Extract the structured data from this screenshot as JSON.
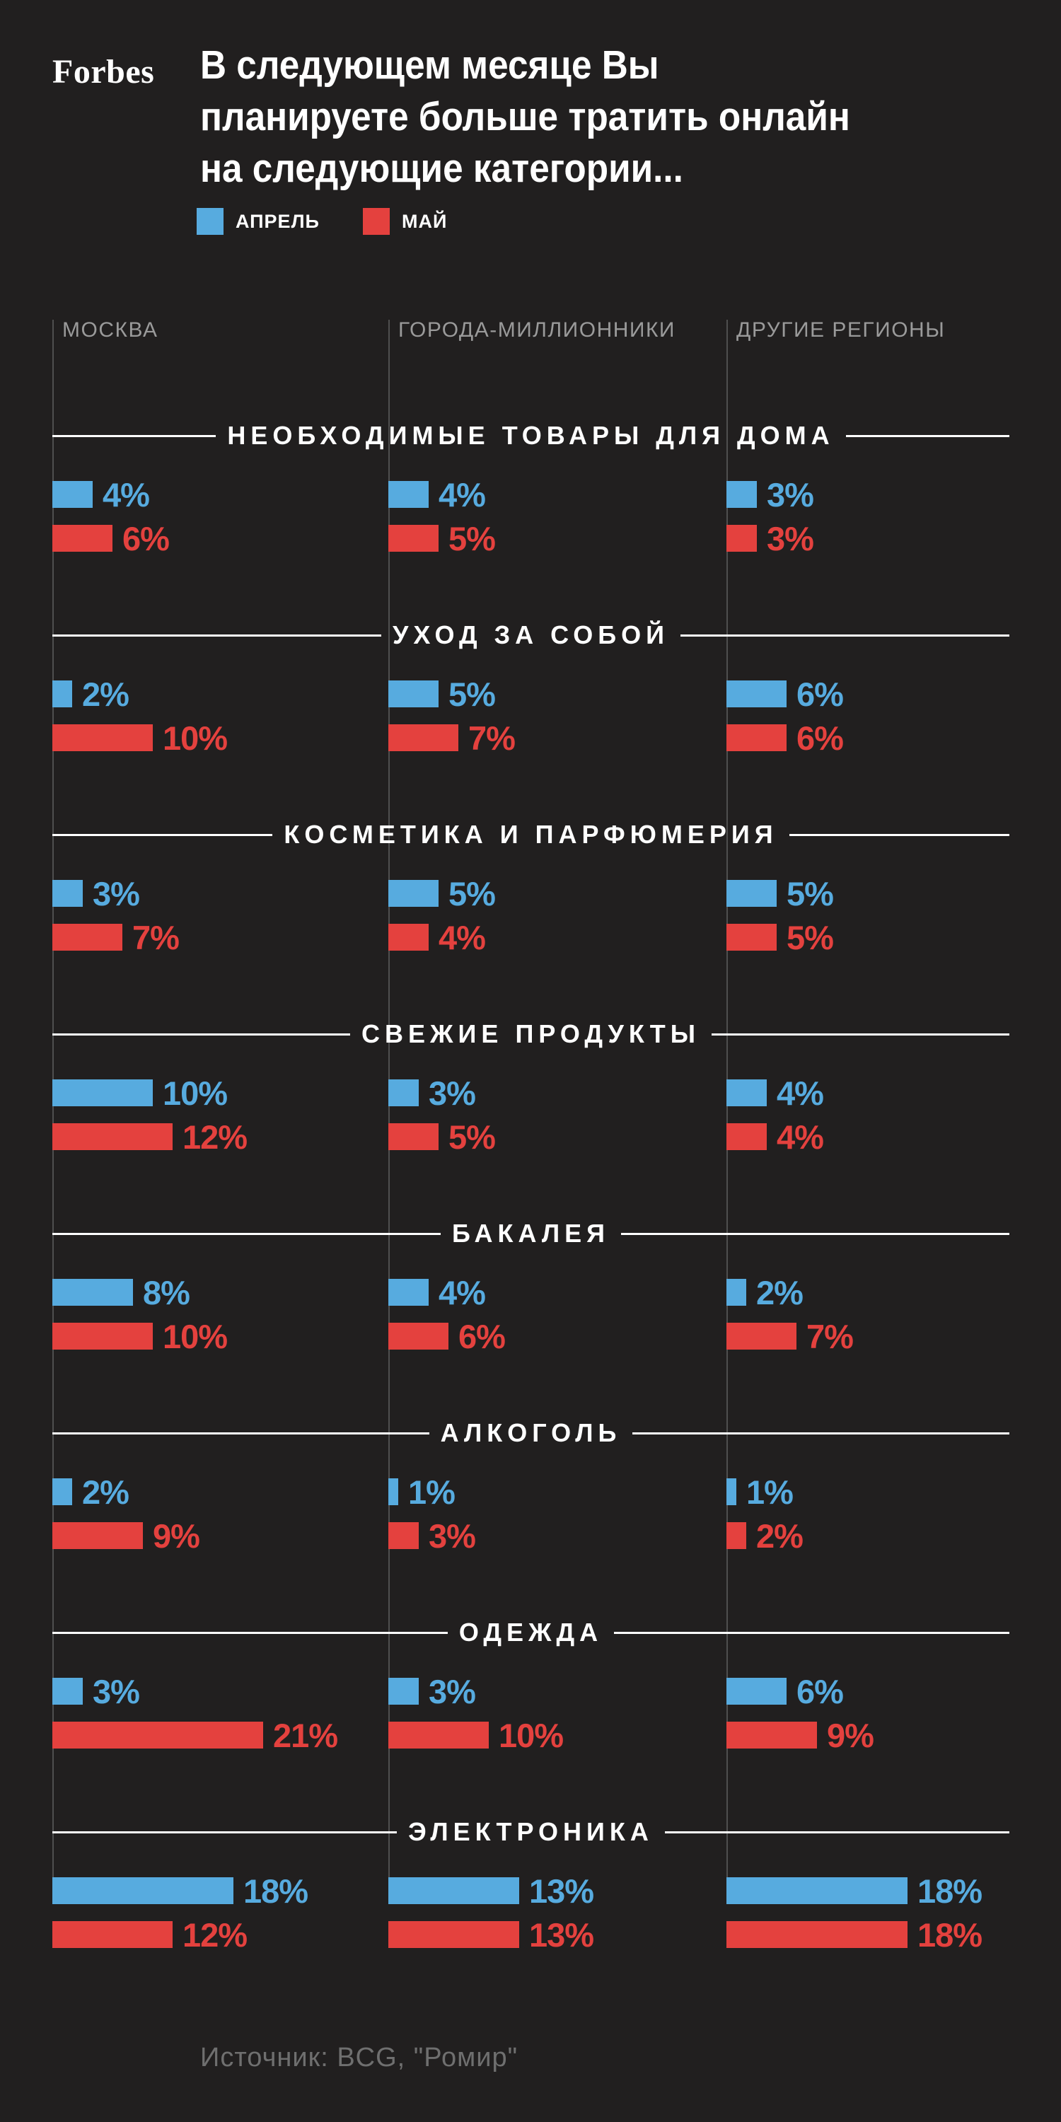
{
  "brand": "Forbes",
  "title": {
    "lines": [
      "В следующем месяце Вы",
      "планируете больше тратить онлайн",
      "на следующие категории..."
    ]
  },
  "legend": [
    {
      "label": "АПРЕЛЬ",
      "color": "#57ABDF"
    },
    {
      "label": "МАЙ",
      "color": "#E4413E"
    }
  ],
  "source": "Источник: BCG, \"Ромир\"",
  "colors": {
    "april": "#57ABDF",
    "may": "#E4413E",
    "background": "#211F1F",
    "title_text": "#FFFFFF",
    "region_label": "#9A9A9A",
    "divider": "#4F4F4F",
    "section_line": "#FFFFFF",
    "source_text": "#6F6F6F"
  },
  "chart_data": {
    "type": "bar",
    "orientation": "horizontal",
    "unit": "percent",
    "title": "В следующем месяце Вы планируете больше тратить онлайн на следующие категории...",
    "series_labels": [
      "АПРЕЛЬ",
      "МАЙ"
    ],
    "regions": [
      "МОСКВА",
      "ГОРОДА-МИЛЛИОННИКИ",
      "ДРУГИЕ РЕГИОНЫ"
    ],
    "value_format": "{v}%",
    "axis_max_percent": 21,
    "categories": [
      {
        "name": "НЕОБХОДИМЫЕ ТОВАРЫ ДЛЯ ДОМА",
        "values": [
          [
            4,
            6
          ],
          [
            4,
            5
          ],
          [
            3,
            3
          ]
        ]
      },
      {
        "name": "УХОД ЗА СОБОЙ",
        "values": [
          [
            2,
            10
          ],
          [
            5,
            7
          ],
          [
            6,
            6
          ]
        ]
      },
      {
        "name": "КОСМЕТИКА И ПАРФЮМЕРИЯ",
        "values": [
          [
            3,
            7
          ],
          [
            5,
            4
          ],
          [
            5,
            5
          ]
        ]
      },
      {
        "name": "СВЕЖИЕ ПРОДУКТЫ",
        "values": [
          [
            10,
            12
          ],
          [
            3,
            5
          ],
          [
            4,
            4
          ]
        ]
      },
      {
        "name": "БАКАЛЕЯ",
        "values": [
          [
            8,
            10
          ],
          [
            4,
            6
          ],
          [
            2,
            7
          ]
        ]
      },
      {
        "name": "АЛКОГОЛЬ",
        "values": [
          [
            2,
            9
          ],
          [
            1,
            3
          ],
          [
            1,
            2
          ]
        ]
      },
      {
        "name": "ОДЕЖДА",
        "values": [
          [
            3,
            21
          ],
          [
            3,
            10
          ],
          [
            6,
            9
          ]
        ]
      },
      {
        "name": "ЭЛЕКТРОНИКА",
        "values": [
          [
            18,
            12
          ],
          [
            13,
            13
          ],
          [
            18,
            18
          ]
        ]
      }
    ]
  }
}
